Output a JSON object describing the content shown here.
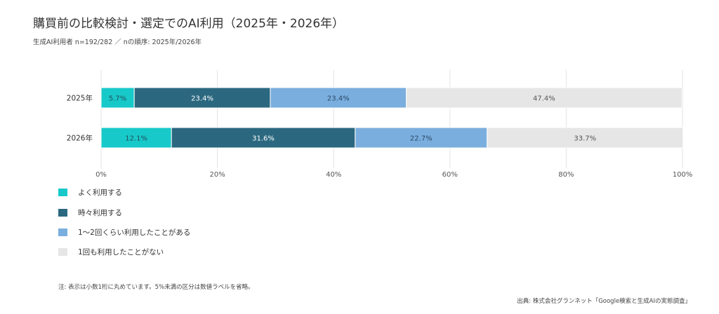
{
  "header": {
    "title": "購買前の比較検討・選定でのAI利用（2025年・2026年）",
    "subtitle": "生成AI利用者 n=192/282 ／ nの順序: 2025年/2026年"
  },
  "chart_data": {
    "type": "bar",
    "orientation": "horizontal",
    "stacked": true,
    "categories": [
      "2025年",
      "2026年"
    ],
    "series": [
      {
        "name": "よく利用する",
        "values": [
          5.7,
          12.1
        ],
        "color": "#18c9c9",
        "label_color": "#1f4f5e"
      },
      {
        "name": "時々利用する",
        "values": [
          23.4,
          31.6
        ],
        "color": "#2b6880",
        "label_color": "#ffffff"
      },
      {
        "name": "1〜2回くらい利用したことがある",
        "values": [
          23.4,
          22.7
        ],
        "color": "#7aaede",
        "label_color": "#2a4a66"
      },
      {
        "name": "1回も利用したことがない",
        "values": [
          47.4,
          33.7
        ],
        "color": "#e6e6e6",
        "label_color": "#555555"
      }
    ],
    "xlim": [
      0,
      100
    ],
    "x_ticks": [
      "0%",
      "20%",
      "40%",
      "60%",
      "80%",
      "100%"
    ],
    "grid": true,
    "legend_position": "bottom-left"
  },
  "footer": {
    "note": "注: 表示は小数1桁に丸めています。5%未満の区分は数値ラベルを省略。",
    "source": "出典: 株式会社グランネット「Google検索と生成AIの実態調査」"
  }
}
